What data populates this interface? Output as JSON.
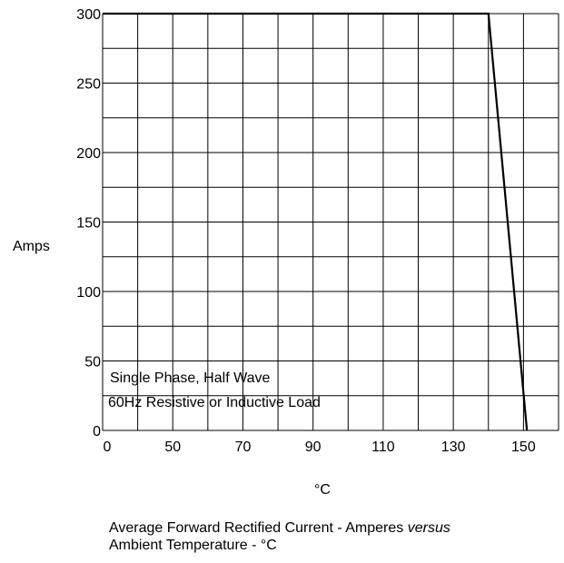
{
  "chart_data": {
    "type": "line",
    "ylabel": "Amps",
    "xlabel": "°C",
    "x_tick_labels": [
      "0",
      "50",
      "70",
      "90",
      "110",
      "130",
      "150"
    ],
    "y_tick_labels": [
      "0",
      "50",
      "100",
      "150",
      "200",
      "250",
      "300"
    ],
    "ylim": [
      0,
      300
    ],
    "grid": true,
    "annotation_lines": [
      "Single Phase, Half Wave",
      "60Hz Resistive or Inductive Load"
    ],
    "series": [
      {
        "points": [
          {
            "x": 0,
            "y": 300
          },
          {
            "x": 140,
            "y": 300
          },
          {
            "x": 151,
            "y": 0
          }
        ]
      }
    ]
  },
  "caption": {
    "line1_prefix": "Average Forward Rectified Current  -  Amperes ",
    "line1_italic": "versus",
    "line2": "Ambient Temperature  - °C"
  }
}
